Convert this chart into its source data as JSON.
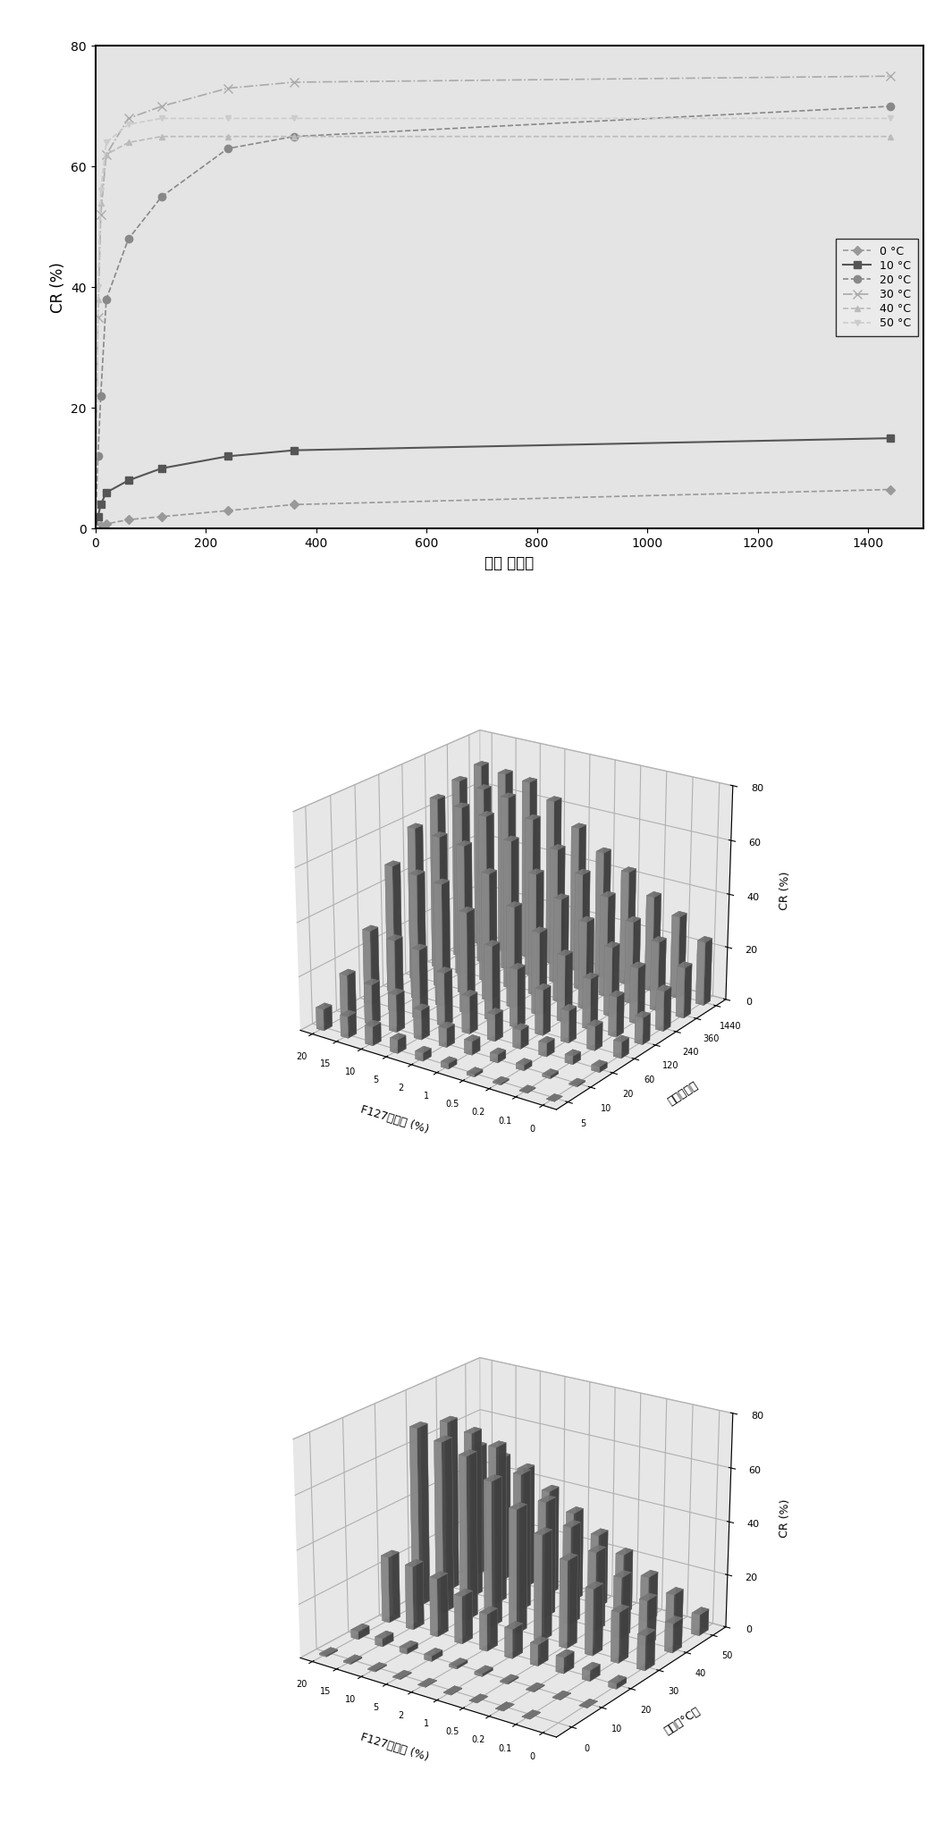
{
  "line_series": [
    {
      "label": "0 °C",
      "times": [
        0,
        5,
        10,
        20,
        60,
        120,
        240,
        360,
        1440
      ],
      "values": [
        0,
        0.3,
        0.5,
        0.8,
        1.5,
        2.0,
        3.0,
        4.0,
        6.5
      ],
      "color": "#999999",
      "marker": "D",
      "ms": 5,
      "ls": "--",
      "lw": 1.2
    },
    {
      "label": "10 °C",
      "times": [
        0,
        5,
        10,
        20,
        60,
        120,
        240,
        360,
        1440
      ],
      "values": [
        0,
        2,
        4,
        6,
        8,
        10,
        12,
        13,
        15
      ],
      "color": "#555555",
      "marker": "s",
      "ms": 6,
      "ls": "-",
      "lw": 1.5
    },
    {
      "label": "20 °C",
      "times": [
        0,
        5,
        10,
        20,
        60,
        120,
        240,
        360,
        1440
      ],
      "values": [
        0,
        12,
        22,
        38,
        48,
        55,
        63,
        65,
        70
      ],
      "color": "#888888",
      "marker": "o",
      "ms": 6,
      "ls": "--",
      "lw": 1.2
    },
    {
      "label": "30 °C",
      "times": [
        0,
        5,
        10,
        20,
        60,
        120,
        240,
        360,
        1440
      ],
      "values": [
        0,
        35,
        52,
        62,
        68,
        70,
        73,
        74,
        75
      ],
      "color": "#aaaaaa",
      "marker": "x",
      "ms": 7,
      "ls": "-.",
      "lw": 1.2
    },
    {
      "label": "40 °C",
      "times": [
        0,
        5,
        10,
        20,
        60,
        120,
        240,
        360,
        1440
      ],
      "values": [
        0,
        38,
        54,
        62,
        64,
        65,
        65,
        65,
        65
      ],
      "color": "#bbbbbb",
      "marker": "^",
      "ms": 5,
      "ls": "--",
      "lw": 1.2
    },
    {
      "label": "50 °C",
      "times": [
        0,
        5,
        10,
        20,
        60,
        120,
        240,
        360,
        1440
      ],
      "values": [
        0,
        40,
        56,
        64,
        67,
        68,
        68,
        68,
        68
      ],
      "color": "#cccccc",
      "marker": "v",
      "ms": 5,
      "ls": "--",
      "lw": 1.2
    }
  ],
  "line_xlim": [
    0,
    1500
  ],
  "line_ylim": [
    0,
    80
  ],
  "line_xticks": [
    0,
    200,
    400,
    600,
    800,
    1000,
    1200,
    1400
  ],
  "line_yticks": [
    0,
    20,
    40,
    60,
    80
  ],
  "line_xlabel": "时间 （分）",
  "line_ylabel": "CR (%)",
  "conc_labels": [
    "20",
    "15",
    "10",
    "5",
    "2",
    "1",
    "0.5",
    "0.2",
    "0.1",
    "0"
  ],
  "time_labels": [
    "5",
    "10",
    "20",
    "60",
    "120",
    "240",
    "360",
    "1440"
  ],
  "temp_labels": [
    "0",
    "10",
    "20",
    "30",
    "40",
    "50"
  ],
  "chart2_ylabel": "时间（分）",
  "chart3_ylabel": "温度（°C）",
  "conc_xlabel": "F127的浓度 (%)",
  "cr_ylabel": "CR (%)",
  "bg_color": "#d8d8d8",
  "pane_color": "#c8c8c8",
  "bar_color": "#999999",
  "bar_edge": "#777777"
}
